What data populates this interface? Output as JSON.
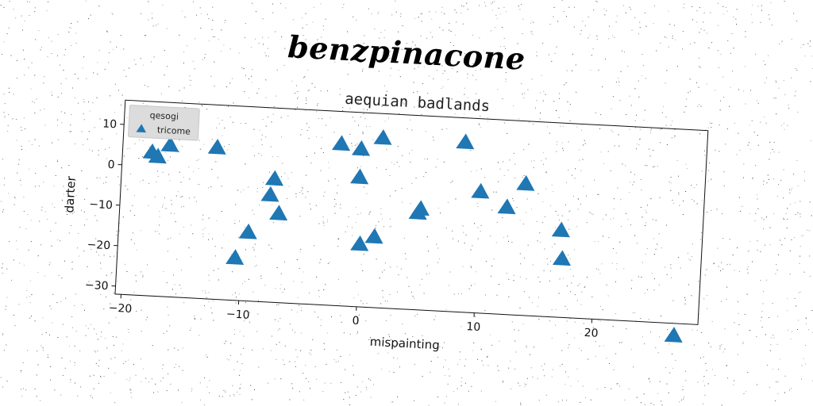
{
  "suptitle": "benzpinacone",
  "chart_data": {
    "type": "scatter",
    "title": "aequian badlands",
    "xlabel": "mispainting",
    "ylabel": "darter",
    "xlim": [
      -20.5,
      29
    ],
    "ylim": [
      -32,
      16
    ],
    "xticks": [
      -20,
      -10,
      0,
      10,
      20
    ],
    "yticks": [
      10,
      0,
      -10,
      -20,
      -30
    ],
    "xtick_labels": [
      "−20",
      "−10",
      "0",
      "10",
      "20"
    ],
    "ytick_labels": [
      "10",
      "0",
      "−10",
      "−20",
      "−30"
    ],
    "grid": false,
    "legend": {
      "title": "qesogi",
      "placement": "top-left",
      "entries": [
        "tricome"
      ]
    },
    "marker": "triangle-up",
    "color": "#1f77b4",
    "series": [
      {
        "name": "tricome",
        "points": [
          [
            -18,
            3.5
          ],
          [
            -17.5,
            2.5
          ],
          [
            -16.5,
            5.5
          ],
          [
            -12.5,
            5.5
          ],
          [
            -7.5,
            -1.5
          ],
          [
            -7.8,
            -5.5
          ],
          [
            -7,
            -10
          ],
          [
            -9.5,
            -15
          ],
          [
            -10.5,
            -21.5
          ],
          [
            -2,
            8
          ],
          [
            -0.3,
            7
          ],
          [
            -0.3,
            0
          ],
          [
            1.5,
            10
          ],
          [
            0,
            -16.5
          ],
          [
            1.2,
            -14.5
          ],
          [
            5,
            -7
          ],
          [
            4.8,
            -8
          ],
          [
            8.5,
            10
          ],
          [
            10,
            -2
          ],
          [
            12.3,
            -5.5
          ],
          [
            13.8,
            0.5
          ],
          [
            17,
            -10.5
          ],
          [
            17.2,
            -17.5
          ],
          [
            27,
            -35
          ]
        ]
      }
    ]
  }
}
